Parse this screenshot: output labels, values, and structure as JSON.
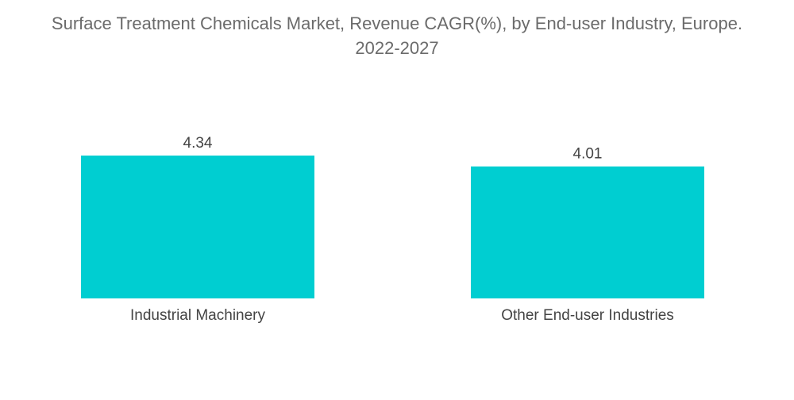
{
  "chart_data": {
    "type": "bar",
    "title_line1": "Surface Treatment Chemicals Market, Revenue CAGR(%), by End-user Industry, Europe.",
    "title_line2": "2022-2027",
    "categories": [
      "Industrial Machinery",
      "Other End-user Industries"
    ],
    "values": [
      4.34,
      4.01
    ],
    "value_labels": [
      "4.34",
      "4.01"
    ],
    "xlabel": "",
    "ylabel": "",
    "grid": false,
    "legend": "none",
    "bar_color": "#00CED1"
  }
}
